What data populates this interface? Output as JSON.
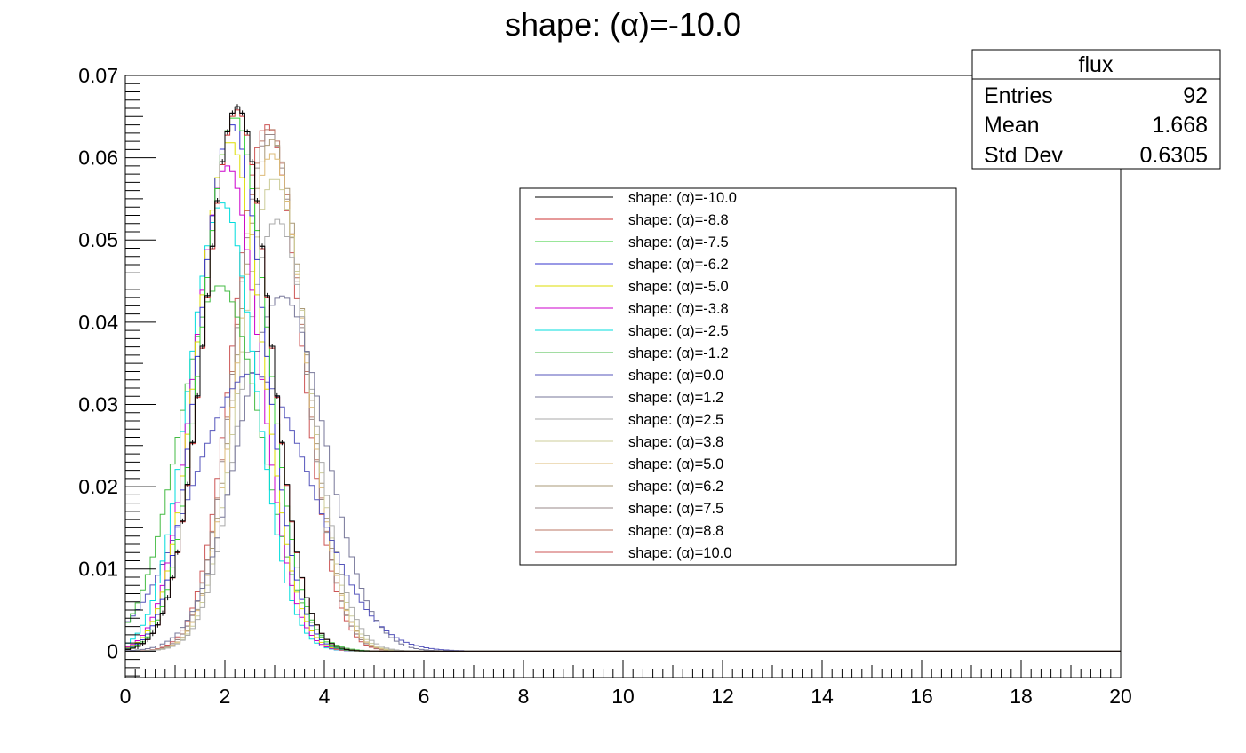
{
  "chart_data": {
    "type": "histogram",
    "title": "shape: (α)=-10.0",
    "xlabel": "",
    "ylabel": "",
    "xlim": [
      0,
      20
    ],
    "ylim": [
      -0.0032,
      0.07
    ],
    "x_ticks": [
      "0",
      "2",
      "4",
      "6",
      "8",
      "10",
      "12",
      "14",
      "16",
      "18",
      "20"
    ],
    "y_ticks": [
      "0",
      "0.01",
      "0.02",
      "0.03",
      "0.04",
      "0.05",
      "0.06",
      "0.07"
    ],
    "bin_width": 0.1,
    "stats": {
      "name": "flux",
      "rows": [
        {
          "label": "Entries",
          "value": "92"
        },
        {
          "label": "Mean",
          "value": "1.668"
        },
        {
          "label": "Std Dev",
          "value": "0.6305"
        }
      ]
    },
    "series": [
      {
        "name": "shape: (α)=-10.0",
        "alpha": -10.0,
        "color": "#000000",
        "peak_x": 2.25,
        "peak_y": 0.0662,
        "sigma": 0.65,
        "markers": true
      },
      {
        "name": "shape: (α)=-8.8",
        "alpha": -8.8,
        "color": "#cc3333",
        "peak_x": 2.25,
        "peak_y": 0.0658,
        "sigma": 0.65
      },
      {
        "name": "shape: (α)=-7.5",
        "alpha": -7.5,
        "color": "#33cc33",
        "peak_x": 2.2,
        "peak_y": 0.065,
        "sigma": 0.65
      },
      {
        "name": "shape: (α)=-6.2",
        "alpha": -6.2,
        "color": "#3333cc",
        "peak_x": 2.15,
        "peak_y": 0.064,
        "sigma": 0.65
      },
      {
        "name": "shape: (α)=-5.0",
        "alpha": -5.0,
        "color": "#dddd00",
        "peak_x": 2.1,
        "peak_y": 0.062,
        "sigma": 0.65
      },
      {
        "name": "shape: (α)=-3.8",
        "alpha": -3.8,
        "color": "#cc00cc",
        "peak_x": 2.05,
        "peak_y": 0.059,
        "sigma": 0.65
      },
      {
        "name": "shape: (α)=-2.5",
        "alpha": -2.5,
        "color": "#00dddd",
        "peak_x": 1.95,
        "peak_y": 0.0545,
        "sigma": 0.67
      },
      {
        "name": "shape: (α)=-1.2",
        "alpha": -1.2,
        "color": "#44bb44",
        "peak_x": 1.9,
        "peak_y": 0.0445,
        "sigma": 0.82
      },
      {
        "name": "shape: (α)=0.0",
        "alpha": 0.0,
        "color": "#5555bb",
        "peak_x": 2.55,
        "peak_y": 0.0338,
        "sigma": 1.18
      },
      {
        "name": "shape: (α)=1.2",
        "alpha": 1.2,
        "color": "#777799",
        "peak_x": 3.15,
        "peak_y": 0.0432,
        "sigma": 0.86
      },
      {
        "name": "shape: (α)=2.5",
        "alpha": 2.5,
        "color": "#aaaaaa",
        "peak_x": 3.05,
        "peak_y": 0.0525,
        "sigma": 0.7
      },
      {
        "name": "shape: (α)=3.8",
        "alpha": 3.8,
        "color": "#cccc99",
        "peak_x": 3.0,
        "peak_y": 0.0575,
        "sigma": 0.68
      },
      {
        "name": "shape: (α)=5.0",
        "alpha": 5.0,
        "color": "#ddbb77",
        "peak_x": 2.95,
        "peak_y": 0.0605,
        "sigma": 0.67
      },
      {
        "name": "shape: (α)=6.2",
        "alpha": 6.2,
        "color": "#aa9977",
        "peak_x": 2.95,
        "peak_y": 0.0622,
        "sigma": 0.67
      },
      {
        "name": "shape: (α)=7.5",
        "alpha": 7.5,
        "color": "#998888",
        "peak_x": 2.9,
        "peak_y": 0.063,
        "sigma": 0.67
      },
      {
        "name": "shape: (α)=8.8",
        "alpha": 8.8,
        "color": "#bb7766",
        "peak_x": 2.9,
        "peak_y": 0.0636,
        "sigma": 0.67
      },
      {
        "name": "shape: (α)=10.0",
        "alpha": 10.0,
        "color": "#cc5555",
        "peak_x": 2.85,
        "peak_y": 0.064,
        "sigma": 0.67
      }
    ]
  }
}
